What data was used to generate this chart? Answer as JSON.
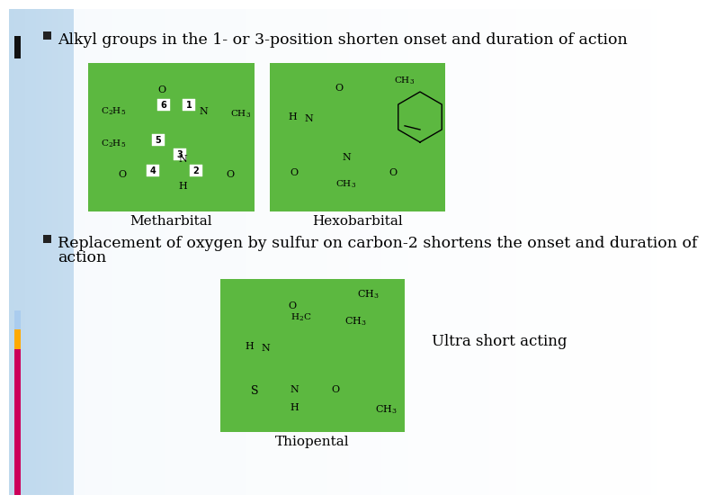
{
  "bg_left_color": "#c0d8ec",
  "bg_right_color": "#ffffff",
  "green_box_color": "#5cb840",
  "text_color": "#000000",
  "bullet_color": "#222222",
  "strip_pink": "#cc005a",
  "strip_orange": "#ffaa00",
  "strip_lightblue": "#aaccee",
  "title1": "Alkyl groups in the 1- or 3-position shorten onset and duration of action",
  "title2_line1": "Replacement of oxygen by sulfur on carbon-2 shortens the onset and duration of",
  "title2_line2": "action",
  "label_metharbital": "Metharbital",
  "label_hexobarbital": "Hexobarbital",
  "label_thiopental": "Thiopental",
  "label_ultra": "Ultra short acting",
  "title_fontsize": 12.5,
  "label_fontsize": 11,
  "struct_fontsize": 8,
  "num_fontsize": 7
}
